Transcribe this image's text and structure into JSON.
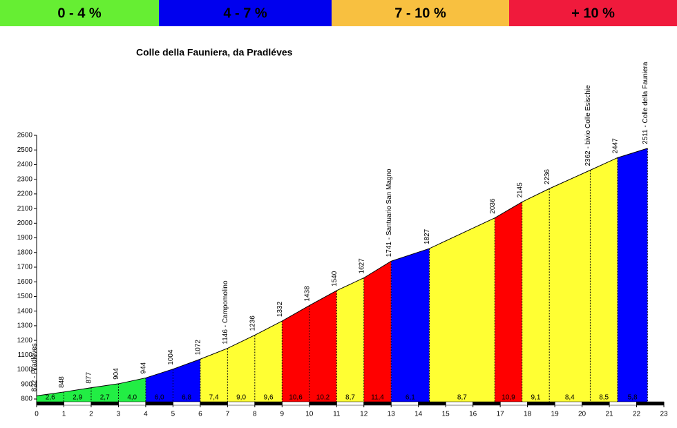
{
  "legend": [
    {
      "label": "0 - 4 %",
      "color": "#66ee33"
    },
    {
      "label": "4 - 7 %",
      "color": "#0000ee"
    },
    {
      "label": "7 - 10 %",
      "color": "#f8c040"
    },
    {
      "label": "+ 10 %",
      "color": "#f01a3c"
    }
  ],
  "chart_data": {
    "type": "area",
    "title": "Colle della Fauniera, da Pradléves",
    "x": [
      0,
      1,
      2,
      3,
      4,
      5,
      6,
      7,
      8,
      9,
      10,
      11,
      12,
      13,
      14.4,
      16.8,
      17.8,
      18.8,
      20.3,
      21.3,
      22.4
    ],
    "values": [
      822,
      848,
      877,
      904,
      944,
      1004,
      1072,
      1146,
      1236,
      1332,
      1438,
      1540,
      1627,
      1741,
      1827,
      2036,
      2145,
      2236,
      2362,
      2447,
      2511
    ],
    "point_labels": [
      "822 - Pradléves",
      "848",
      "877",
      "904",
      "944",
      "1004",
      "1072",
      "1146 - Campomolino",
      "1236",
      "1332",
      "1438",
      "1540",
      "1627",
      "1741 - Santuario San Magno",
      "1827",
      "2036",
      "2145",
      "2236",
      "2362 - bivio Colle Esischie",
      "2447",
      "2511 - Colle della Fauniera"
    ],
    "gradients": [
      2.6,
      2.9,
      2.7,
      4.0,
      6.0,
      6.8,
      7.4,
      9.0,
      9.6,
      10.6,
      10.2,
      8.7,
      11.4,
      6.1,
      8.7,
      10.9,
      9.1,
      8.4,
      8.5,
      5.8
    ],
    "gradient_labels": [
      "2,6",
      "2,9",
      "2,7",
      "4,0",
      "6,0",
      "6,8",
      "7,4",
      "9,0",
      "9,6",
      "10,6",
      "10,2",
      "8,7",
      "11,4",
      "6,1",
      "8,7",
      "10,9",
      "9,1",
      "8,4",
      "8,5",
      "5,8"
    ],
    "segment_colors": [
      "#22ee44",
      "#22ee44",
      "#22ee44",
      "#22ee44",
      "#0000ff",
      "#0000ff",
      "#ffff33",
      "#ffff33",
      "#ffff33",
      "#ff0000",
      "#ff0000",
      "#ffff33",
      "#ff0000",
      "#0000ff",
      "#ffff33",
      "#ff0000",
      "#ffff33",
      "#ffff33",
      "#ffff33",
      "#0000ff"
    ],
    "xlim": [
      0,
      23
    ],
    "xticks": [
      0,
      1,
      2,
      3,
      4,
      5,
      6,
      7,
      8,
      9,
      10,
      11,
      12,
      13,
      14,
      15,
      16,
      17,
      18,
      19,
      20,
      21,
      22,
      23
    ],
    "ylim": [
      800,
      2600
    ],
    "yticks": [
      800,
      900,
      1000,
      1100,
      1200,
      1300,
      1400,
      1500,
      1600,
      1700,
      1800,
      1900,
      2000,
      2100,
      2200,
      2300,
      2400,
      2500,
      2600
    ]
  }
}
